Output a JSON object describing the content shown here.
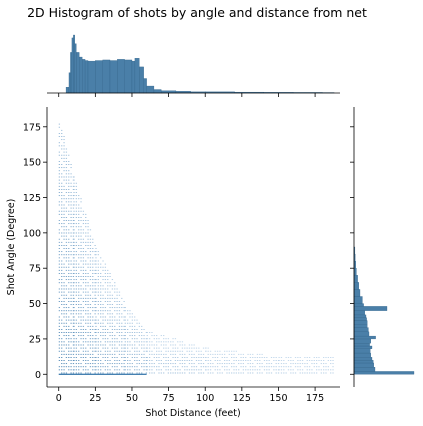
{
  "chart_data": {
    "type": "heatmap",
    "title": "2D Histogram of shots by angle and distance from net",
    "xlabel": "Shot Distance (feet)",
    "ylabel": "Shot Angle (Degree)",
    "xlim": [
      -8,
      192
    ],
    "ylim": [
      -9,
      189
    ],
    "x_ticks": [
      0,
      25,
      50,
      75,
      100,
      125,
      150,
      175
    ],
    "y_ticks": [
      0,
      25,
      50,
      75,
      100,
      125,
      150,
      175
    ],
    "grid": false,
    "legend": "none",
    "colors": {
      "heat_low": "#c6dbef",
      "heat_high": "#2c6fa6",
      "marginal_fill": "#4a7fa8",
      "marginal_edge": "#2d5f86"
    },
    "joint_density": [
      {
        "x_range": [
          0,
          10
        ],
        "angle_max": 180,
        "level": 0.9
      },
      {
        "x_range": [
          10,
          25
        ],
        "angle_max": 140,
        "level": 0.8
      },
      {
        "x_range": [
          25,
          45
        ],
        "angle_max": 90,
        "level": 0.65
      },
      {
        "x_range": [
          45,
          60
        ],
        "angle_max": 50,
        "level": 0.55
      },
      {
        "x_range": [
          60,
          100
        ],
        "angle_max": 30,
        "level": 0.35
      },
      {
        "x_range": [
          100,
          150
        ],
        "angle_max": 18,
        "level": 0.25
      },
      {
        "x_range": [
          150,
          188
        ],
        "angle_max": 12,
        "level": 0.2
      }
    ],
    "x_marginal": {
      "x": [
        5,
        7,
        8,
        9,
        10,
        11,
        12,
        14,
        16,
        18,
        20,
        25,
        30,
        35,
        40,
        45,
        50,
        52,
        55,
        58,
        60,
        65,
        70,
        80,
        90,
        100,
        120,
        140,
        160,
        180,
        188
      ],
      "density": [
        0.1,
        0.35,
        0.7,
        0.95,
        1.0,
        0.85,
        0.7,
        0.62,
        0.58,
        0.56,
        0.55,
        0.56,
        0.57,
        0.56,
        0.58,
        0.57,
        0.55,
        0.6,
        0.45,
        0.25,
        0.12,
        0.06,
        0.04,
        0.03,
        0.02,
        0.02,
        0.015,
        0.012,
        0.01,
        0.008,
        0.005
      ]
    },
    "y_marginal": {
      "angle": [
        0,
        2,
        5,
        8,
        10,
        12,
        15,
        18,
        20,
        22,
        25,
        27,
        30,
        33,
        35,
        38,
        40,
        42,
        45,
        48,
        50,
        55,
        60,
        65,
        70,
        75,
        80,
        85,
        90
      ],
      "density": [
        1.0,
        0.35,
        0.33,
        0.32,
        0.3,
        0.28,
        0.27,
        0.3,
        0.26,
        0.28,
        0.36,
        0.25,
        0.24,
        0.22,
        0.22,
        0.21,
        0.2,
        0.18,
        0.55,
        0.16,
        0.14,
        0.1,
        0.08,
        0.06,
        0.04,
        0.03,
        0.02,
        0.015,
        0.01
      ]
    }
  }
}
